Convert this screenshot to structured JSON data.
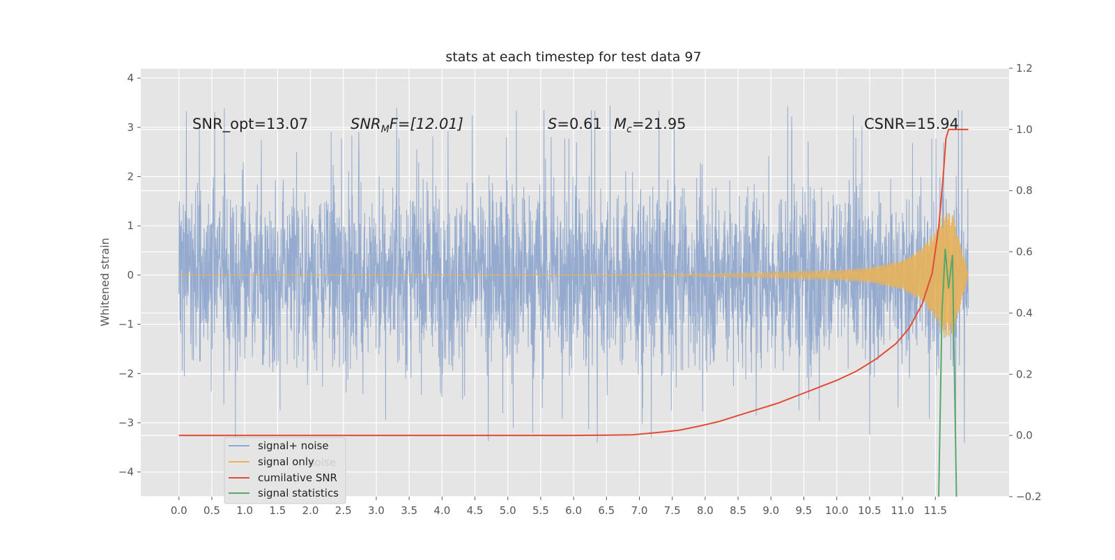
{
  "chart_data": {
    "type": "line",
    "title": "stats at each timestep for test data 97",
    "ylabel": "Whitened strain",
    "xlabel": "",
    "x_ticks": [
      "0.0",
      "0.5",
      "1.0",
      "1.5",
      "2.0",
      "2.5",
      "3.0",
      "3.5",
      "4.0",
      "4.5",
      "5.0",
      "5.5",
      "6.0",
      "6.5",
      "7.0",
      "7.5",
      "8.0",
      "8.5",
      "9.0",
      "9.5",
      "10.0",
      "10.5",
      "11.0",
      "11.5"
    ],
    "xlim": [
      -0.58,
      12.62
    ],
    "y_left": {
      "ticks": [
        "4",
        "3",
        "2",
        "1",
        "0",
        "−1",
        "−2",
        "−3",
        "−4"
      ],
      "lim": [
        -4.5,
        4.2
      ]
    },
    "y_right": {
      "ticks": [
        "1.2",
        "1.0",
        "0.8",
        "0.6",
        "0.4",
        "0.2",
        "0.0",
        "−0.2"
      ],
      "lim": [
        -0.2,
        1.2
      ]
    },
    "annotations": {
      "snr_opt": "SNR_opt=13.07",
      "snr_mf": "SNR",
      "snr_mf_sub": "M",
      "snr_mf_rest": "F=[12.01]",
      "s_label": "S",
      "s_value": "=0.61",
      "mc_label": "M",
      "mc_sub": "c",
      "mc_value": "=21.95",
      "csnr": "CSNR=15.94"
    },
    "series": [
      {
        "name": "signal+ noise",
        "color": "#8fa6cc",
        "axis": "left",
        "description": "whitened noise, amplitude envelope ~±1.8 with spikes to ~±3.5, spanning x 0 to 12"
      },
      {
        "name": "signal only",
        "color": "#e8b25a",
        "axis": "left",
        "envelope": {
          "x": [
            0,
            6.0,
            8.0,
            9.0,
            10.0,
            10.5,
            11.0,
            11.3,
            11.5,
            11.65,
            11.8,
            12.0
          ],
          "amp": [
            0.0,
            0.01,
            0.03,
            0.06,
            0.1,
            0.15,
            0.3,
            0.55,
            0.9,
            1.3,
            1.2,
            0.0
          ]
        }
      },
      {
        "name": "cumilative SNR",
        "color": "#e24a33",
        "axis": "right",
        "x": [
          0,
          6.0,
          6.5,
          6.9,
          7.3,
          7.6,
          7.9,
          8.2,
          8.5,
          8.8,
          9.1,
          9.4,
          9.7,
          10.0,
          10.3,
          10.6,
          10.9,
          11.1,
          11.3,
          11.45,
          11.55,
          11.62,
          11.66,
          11.7,
          12.0
        ],
        "y": [
          0.0,
          0.0,
          0.001,
          0.002,
          0.01,
          0.017,
          0.03,
          0.045,
          0.065,
          0.085,
          0.105,
          0.13,
          0.155,
          0.18,
          0.21,
          0.25,
          0.3,
          0.35,
          0.43,
          0.53,
          0.68,
          0.85,
          0.97,
          1.0,
          1.0
        ]
      },
      {
        "name": "signal statistics",
        "color": "#55a868",
        "axis": "right",
        "x": [
          11.55,
          11.6,
          11.65,
          11.7,
          11.76,
          11.82
        ],
        "y": [
          -0.2,
          0.4,
          0.61,
          0.48,
          0.59,
          -0.2
        ]
      }
    ],
    "legend": {
      "placement": "lower-left",
      "ghost": "noise"
    }
  }
}
